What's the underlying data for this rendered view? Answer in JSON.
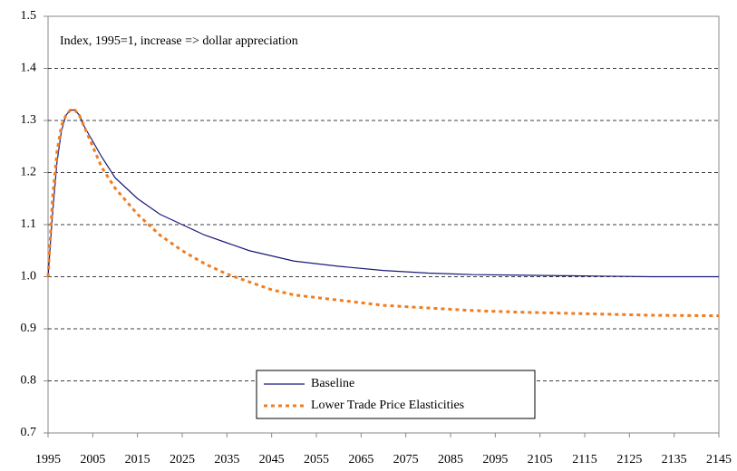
{
  "chart_data": {
    "type": "line",
    "annotation": "Index, 1995=1, increase => dollar appreciation",
    "x": [
      1995,
      1996,
      1997,
      1998,
      1999,
      2000,
      2001,
      2002,
      2003,
      2005,
      2007,
      2010,
      2015,
      2020,
      2025,
      2030,
      2035,
      2040,
      2045,
      2050,
      2055,
      2060,
      2070,
      2080,
      2090,
      2100,
      2110,
      2120,
      2130,
      2145
    ],
    "series": [
      {
        "name": "Baseline",
        "color": "#1a1a7a",
        "style": "solid",
        "values": [
          1.0,
          1.12,
          1.22,
          1.28,
          1.31,
          1.32,
          1.32,
          1.31,
          1.29,
          1.26,
          1.23,
          1.19,
          1.15,
          1.12,
          1.1,
          1.08,
          1.065,
          1.05,
          1.04,
          1.03,
          1.025,
          1.02,
          1.012,
          1.007,
          1.004,
          1.003,
          1.002,
          1.001,
          1.0,
          1.0
        ]
      },
      {
        "name": "Lower Trade Price Elasticities",
        "color": "#f07d20",
        "style": "dotted",
        "values": [
          1.0,
          1.15,
          1.24,
          1.29,
          1.31,
          1.32,
          1.32,
          1.31,
          1.29,
          1.25,
          1.21,
          1.17,
          1.12,
          1.08,
          1.05,
          1.025,
          1.005,
          0.99,
          0.975,
          0.965,
          0.96,
          0.955,
          0.945,
          0.94,
          0.935,
          0.932,
          0.93,
          0.928,
          0.926,
          0.925
        ]
      }
    ],
    "xlim": [
      1995,
      2145
    ],
    "xticks": [
      1995,
      2005,
      2015,
      2025,
      2035,
      2045,
      2055,
      2065,
      2075,
      2085,
      2095,
      2105,
      2115,
      2125,
      2135,
      2145
    ],
    "ylim": [
      0.7,
      1.5
    ],
    "yticks": [
      0.7,
      0.8,
      0.9,
      {
        "value": 1,
        "label": "1.0"
      },
      1.1,
      1.2,
      1.3,
      1.4,
      1.5
    ],
    "grid": true
  }
}
